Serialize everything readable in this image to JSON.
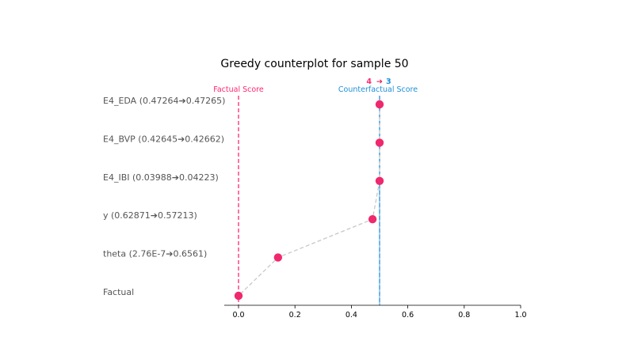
{
  "chart_data": {
    "type": "scatter",
    "title": "Greedy counterplot for sample 50",
    "xlim": [
      -0.05,
      1.0
    ],
    "x_ticks": [
      0.0,
      0.2,
      0.4,
      0.6,
      0.8,
      1.0
    ],
    "x_tick_labels": [
      "0.0",
      "0.2",
      "0.4",
      "0.6",
      "0.8",
      "1.0"
    ],
    "rows": [
      {
        "label": "E4_EDA (0.47264➔0.47265)",
        "x": 0.5
      },
      {
        "label": "E4_BVP (0.42645➔0.42662)",
        "x": 0.5
      },
      {
        "label": "E4_IBI (0.03988➔0.04223)",
        "x": 0.5
      },
      {
        "label": "y (0.62871➔0.57213)",
        "x": 0.475
      },
      {
        "label": "theta (2.76E-7➔0.6561)",
        "x": 0.14
      },
      {
        "label": "Factual",
        "x": 0.0
      }
    ],
    "factual_score": {
      "label": "Factual Score",
      "x": 0.0,
      "color": "#ff2670"
    },
    "counterfactual_score": {
      "label": "Counterfactual Score",
      "x": 0.5,
      "color": "#1f8fd8"
    },
    "class_from": "4",
    "class_to": "3",
    "arrow": "➔",
    "point_color": "#f0286d",
    "path_color": "#c8c8c8",
    "grid": false
  }
}
